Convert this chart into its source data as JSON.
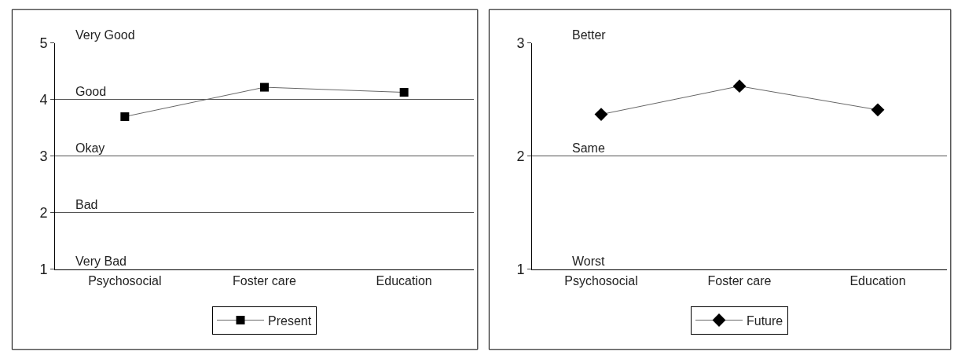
{
  "chart_data": [
    {
      "type": "line",
      "categories": [
        "Psychosocial",
        "Foster care",
        "Education"
      ],
      "series": [
        {
          "name": "Present",
          "color": "#000000",
          "values": [
            3.7,
            4.22,
            4.13
          ]
        }
      ],
      "ylim": [
        1,
        5
      ],
      "yticks": [
        1,
        2,
        3,
        4,
        5
      ],
      "grid": "y",
      "legend": "bottom",
      "marker": "square",
      "line_style": "solid",
      "annotations": [
        "Very Good",
        "Good",
        "Okay",
        "Bad",
        "Very Bad"
      ]
    },
    {
      "type": "line",
      "categories": [
        "Psychosocial",
        "Foster care",
        "Education"
      ],
      "series": [
        {
          "name": "Future",
          "color": "#000000",
          "values": [
            2.37,
            2.62,
            2.41
          ]
        }
      ],
      "ylim": [
        1,
        3
      ],
      "yticks": [
        1,
        2,
        3
      ],
      "grid": "y",
      "legend": "bottom",
      "marker": "diamond",
      "line_style": "solid",
      "annotations": [
        "Better",
        "Same",
        "Worst"
      ]
    }
  ]
}
